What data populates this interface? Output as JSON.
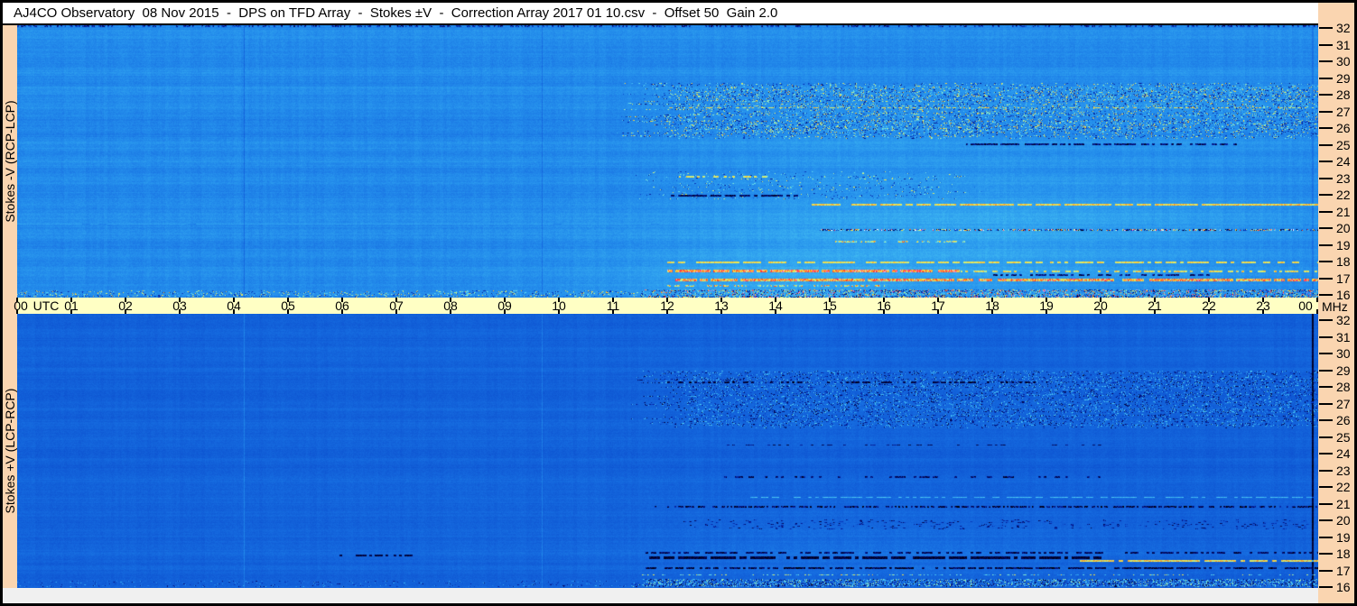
{
  "window": {
    "title": "AJ4CO Observatory  08 Nov 2015  -  DPS on TFD Array  -  Stokes ±V  -  Correction Array 2017 01 10.csv  -  Offset 50  Gain 2.0"
  },
  "colors": {
    "border": "#000000",
    "background": "#FAD5B0",
    "titlebar_bg": "#FFFFFF",
    "time_band_bg": "#FFFFC4",
    "bottom_strip_bg": "#F0F0F0",
    "axis_text": "#000000"
  },
  "panels": [
    {
      "label": "Stokes -V (RCP-LCP)"
    },
    {
      "label": "Stokes +V (LCP-RCP)"
    }
  ],
  "axes": {
    "time": {
      "unit_label": "UTC",
      "right_unit_label": "MHz",
      "hours": [
        "00",
        "01",
        "02",
        "03",
        "04",
        "05",
        "06",
        "07",
        "08",
        "09",
        "10",
        "11",
        "12",
        "13",
        "14",
        "15",
        "16",
        "17",
        "18",
        "19",
        "20",
        "21",
        "22",
        "23",
        "00"
      ]
    },
    "frequency": {
      "ticks": [
        "32",
        "31",
        "30",
        "29",
        "28",
        "27",
        "26",
        "25",
        "24",
        "23",
        "22",
        "21",
        "20",
        "19",
        "18",
        "17",
        "16"
      ]
    }
  },
  "chart_data": {
    "type": "heatmap",
    "title": "AJ4CO Observatory 08 Nov 2015 - DPS on TFD Array - Stokes ±V dynamic spectra (24 h radio spectrogram pair)",
    "x": {
      "label": "UTC",
      "range": [
        0,
        24
      ],
      "tick_step": 1
    },
    "y": {
      "label": "MHz",
      "range": [
        16,
        32
      ],
      "tick_step": 1
    },
    "legend": "none",
    "grid": false,
    "colormap": [
      [
        0.0,
        0,
        0,
        0
      ],
      [
        0.06,
        2,
        2,
        60
      ],
      [
        0.14,
        4,
        22,
        140
      ],
      [
        0.22,
        8,
        52,
        185
      ],
      [
        0.3,
        13,
        82,
        208
      ],
      [
        0.38,
        22,
        108,
        224
      ],
      [
        0.46,
        36,
        142,
        236
      ],
      [
        0.52,
        52,
        168,
        240
      ],
      [
        0.58,
        72,
        196,
        242
      ],
      [
        0.64,
        100,
        220,
        238
      ],
      [
        0.7,
        145,
        237,
        200
      ],
      [
        0.75,
        200,
        240,
        130
      ],
      [
        0.8,
        248,
        232,
        70
      ],
      [
        0.85,
        255,
        170,
        40
      ],
      [
        0.9,
        255,
        90,
        30
      ],
      [
        0.94,
        252,
        40,
        60
      ],
      [
        0.97,
        255,
        90,
        200
      ],
      [
        1.0,
        255,
        255,
        255
      ]
    ],
    "panels": [
      {
        "name": "Stokes -V (RCP-LCP)",
        "seed": 11,
        "base": 0.45,
        "noise": 0.02,
        "band": 0.014,
        "col": 0.009,
        "glows": [
          {
            "t": 16.5,
            "f": 18.5,
            "tw": 5.5,
            "fw": 3.2,
            "a": 0.055
          },
          {
            "t": 18.5,
            "f": 21.5,
            "tw": 5.0,
            "fw": 2.8,
            "a": 0.03
          },
          {
            "t": 15.5,
            "f": 25.8,
            "tw": 3.2,
            "fw": 2.2,
            "a": 0.028
          },
          {
            "t": 21.5,
            "f": 26.8,
            "tw": 2.8,
            "fw": 2.2,
            "a": 0.022
          },
          {
            "t": 13.5,
            "f": 16.8,
            "tw": 2.5,
            "fw": 1.5,
            "a": 0.035
          }
        ],
        "regions": [
          {
            "f": [
              25.3,
              28.6
            ],
            "t": [
              11.8,
              24.5
            ],
            "density": 0.32,
            "vmin": 0.1,
            "vmax": 0.85,
            "cell": 2,
            "jitter": 1.6
          },
          {
            "f": [
              21.8,
              23.4
            ],
            "t": [
              12.0,
              17.2
            ],
            "density": 0.1,
            "vmin": 0.14,
            "vmax": 0.8,
            "cell": 2,
            "jitter": 1.2
          },
          {
            "f": [
              16.02,
              16.5
            ],
            "t": [
              11.6,
              24.5
            ],
            "density": 0.6,
            "vmin": 0.03,
            "vmax": 1.0,
            "cell": 1,
            "jitter": 0.3
          },
          {
            "f": [
              16.02,
              16.4
            ],
            "t": [
              -0.5,
              11.6
            ],
            "density": 0.2,
            "vmin": 0.15,
            "vmax": 0.85,
            "cell": 2,
            "jitter": 0.3
          }
        ],
        "hlines": [
          {
            "f": 31.93,
            "h": 2,
            "t": [
              0,
              24
            ],
            "density": 0.45,
            "v": 0.25,
            "spread": 0.18,
            "cell": 2
          },
          {
            "f": 17.05,
            "h": 3,
            "t": [
              12.1,
              24
            ],
            "density": 0.92,
            "v": 0.84,
            "spread": 0.13,
            "cell": 3
          },
          {
            "f": 17.55,
            "h": 3,
            "t": [
              12.0,
              17.4
            ],
            "density": 0.95,
            "v": 0.87,
            "spread": 0.12,
            "cell": 3
          },
          {
            "f": 17.55,
            "h": 2,
            "t": [
              17.4,
              24
            ],
            "density": 0.55,
            "v": 0.78,
            "spread": 0.09,
            "cell": 3
          },
          {
            "f": 18.05,
            "h": 2,
            "t": [
              12.0,
              24
            ],
            "density": 0.6,
            "v": 0.79,
            "spread": 0.06,
            "cell": 4
          },
          {
            "f": 21.45,
            "h": 2,
            "t": [
              14.6,
              24
            ],
            "density": 0.85,
            "v": 0.81,
            "spread": 0.06,
            "cell": 4
          },
          {
            "f": 23.1,
            "h": 2,
            "t": [
              12.2,
              13.9
            ],
            "density": 0.5,
            "v": 0.78,
            "spread": 0.07,
            "cell": 3
          },
          {
            "f": 19.95,
            "h": 2,
            "t": [
              14.8,
              24
            ],
            "density": 0.8,
            "v": 0.5,
            "spread": 0.55,
            "cell": 2
          },
          {
            "f": 19.3,
            "h": 2,
            "t": [
              15.0,
              17.6
            ],
            "density": 0.55,
            "v": 0.7,
            "spread": 0.2,
            "cell": 3
          },
          {
            "f": 22.0,
            "h": 2,
            "t": [
              12.0,
              14.4
            ],
            "density": 0.85,
            "v": 0.1,
            "spread": 0.08,
            "cell": 4
          },
          {
            "f": 25.0,
            "h": 2,
            "t": [
              17.5,
              22.5
            ],
            "density": 0.7,
            "v": 0.12,
            "spread": 0.1,
            "cell": 3
          },
          {
            "f": 17.35,
            "h": 2,
            "t": [
              18.0,
              22.0
            ],
            "density": 0.6,
            "v": 0.14,
            "spread": 0.12,
            "cell": 3
          },
          {
            "f": 16.7,
            "h": 2,
            "t": [
              12.0,
              16.0
            ],
            "density": 0.45,
            "v": 0.74,
            "spread": 0.18,
            "cell": 2
          },
          {
            "f": 27.15,
            "h": 1,
            "t": [
              12.0,
              24
            ],
            "density": 0.3,
            "v": 0.79,
            "spread": 0.08,
            "cell": 2
          },
          {
            "f": 20.3,
            "h": 1,
            "t": [
              0,
              24
            ],
            "density": 0.9,
            "v": 0.5,
            "spread": 0.02,
            "cell": 9
          },
          {
            "f": 24.0,
            "h": 1,
            "t": [
              0,
              12
            ],
            "density": 0.85,
            "v": 0.48,
            "spread": 0.02,
            "cell": 9
          }
        ],
        "vlines": [
          {
            "t": 4.18,
            "w": 1,
            "dv": -0.07
          },
          {
            "t": 9.68,
            "w": 1,
            "dv": -0.07
          },
          {
            "t": 23.88,
            "w": 2,
            "dv": -0.05
          }
        ]
      },
      {
        "name": "Stokes +V (LCP-RCP)",
        "seed": 77,
        "base": 0.345,
        "noise": 0.018,
        "band": 0.013,
        "col": 0.008,
        "glows": [
          {
            "t": 16.0,
            "f": 18.0,
            "tw": 4.5,
            "fw": 2.5,
            "a": 0.032
          },
          {
            "t": 16.5,
            "f": 27.0,
            "tw": 4.0,
            "fw": 2.0,
            "a": 0.018
          },
          {
            "t": 9.0,
            "f": 22.0,
            "tw": 9.0,
            "fw": 8.0,
            "a": 0.008
          }
        ],
        "regions": [
          {
            "f": [
              25.3,
              28.7
            ],
            "t": [
              12.0,
              24.5
            ],
            "density": 0.3,
            "vmin": 0.05,
            "vmax": 0.62,
            "cell": 2,
            "jitter": 1.6
          },
          {
            "f": [
              16.05,
              16.55
            ],
            "t": [
              11.5,
              24.5
            ],
            "density": 0.55,
            "vmin": 0.02,
            "vmax": 0.75,
            "cell": 1,
            "jitter": 0.3
          },
          {
            "f": [
              16.05,
              16.4
            ],
            "t": [
              -0.5,
              11.5
            ],
            "density": 0.15,
            "vmin": 0.1,
            "vmax": 0.55,
            "cell": 2,
            "jitter": 0.3
          },
          {
            "f": [
              19.4,
              20.0
            ],
            "t": [
              12.5,
              24.5
            ],
            "density": 0.1,
            "vmin": 0.05,
            "vmax": 0.35,
            "cell": 3,
            "jitter": 1.0
          }
        ],
        "hlines": [
          {
            "f": 17.75,
            "h": 3,
            "t": [
              11.6,
              20.0
            ],
            "density": 0.85,
            "v": 0.06,
            "spread": 0.05,
            "cell": 4
          },
          {
            "f": 18.05,
            "h": 2,
            "t": [
              11.6,
              24
            ],
            "density": 0.5,
            "v": 0.1,
            "spread": 0.08,
            "cell": 3
          },
          {
            "f": 17.15,
            "h": 2,
            "t": [
              11.6,
              24
            ],
            "density": 0.7,
            "v": 0.08,
            "spread": 0.1,
            "cell": 3
          },
          {
            "f": 17.6,
            "h": 2,
            "t": [
              19.6,
              24
            ],
            "density": 0.9,
            "v": 0.8,
            "spread": 0.07,
            "cell": 5
          },
          {
            "f": 20.75,
            "h": 2,
            "t": [
              11.7,
              24
            ],
            "density": 0.6,
            "v": 0.1,
            "spread": 0.14,
            "cell": 2
          },
          {
            "f": 22.5,
            "h": 2,
            "t": [
              13.0,
              20.0
            ],
            "density": 0.35,
            "v": 0.12,
            "spread": 0.1,
            "cell": 3
          },
          {
            "f": 28.0,
            "h": 2,
            "t": [
              12.0,
              19.0
            ],
            "density": 0.4,
            "v": 0.07,
            "spread": 0.07,
            "cell": 3
          },
          {
            "f": 21.3,
            "h": 1,
            "t": [
              13.5,
              24
            ],
            "density": 0.6,
            "v": 0.56,
            "spread": 0.05,
            "cell": 4
          },
          {
            "f": 24.35,
            "h": 1,
            "t": [
              13.0,
              20.0
            ],
            "density": 0.3,
            "v": 0.12,
            "spread": 0.08,
            "cell": 3
          },
          {
            "f": 17.9,
            "h": 2,
            "t": [
              5.9,
              7.3
            ],
            "density": 0.45,
            "v": 0.07,
            "spread": 0.05,
            "cell": 3
          },
          {
            "f": 16.75,
            "h": 1,
            "t": [
              11.5,
              24
            ],
            "density": 0.35,
            "v": 0.62,
            "spread": 0.22,
            "cell": 2
          }
        ],
        "vlines": [
          {
            "t": 4.18,
            "w": 1,
            "dv": 0.07
          },
          {
            "t": 9.68,
            "w": 1,
            "dv": 0.07
          },
          {
            "t": 23.88,
            "w": 2,
            "dv": -0.3
          }
        ]
      }
    ]
  }
}
